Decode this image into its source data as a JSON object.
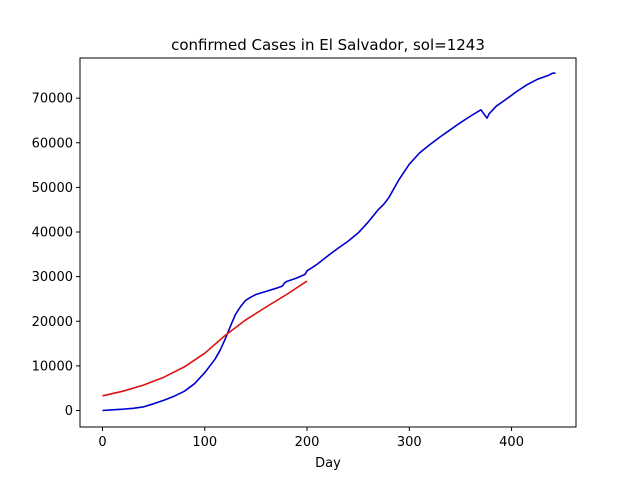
{
  "chart_data": {
    "type": "line",
    "title": "confirmed Cases in El Salvador, sol=1243",
    "xlabel": "Day",
    "ylabel": "",
    "xlim": [
      -22,
      463
    ],
    "ylim": [
      -3700,
      79000
    ],
    "xticks": [
      0,
      100,
      200,
      300,
      400
    ],
    "yticks": [
      0,
      10000,
      20000,
      30000,
      40000,
      50000,
      60000,
      70000
    ],
    "grid": false,
    "series": [
      {
        "color": "#0000cc",
        "x": [
          0,
          10,
          20,
          30,
          40,
          50,
          60,
          70,
          80,
          90,
          100,
          110,
          115,
          120,
          125,
          130,
          135,
          140,
          145,
          150,
          160,
          170,
          176,
          178,
          180,
          190,
          198,
          200,
          205,
          210,
          220,
          230,
          240,
          250,
          260,
          265,
          270,
          275,
          280,
          290,
          300,
          310,
          320,
          330,
          340,
          350,
          360,
          370,
          376,
          378,
          385,
          395,
          405,
          415,
          425,
          435,
          440,
          443
        ],
        "y": [
          0,
          150,
          300,
          500,
          800,
          1500,
          2300,
          3200,
          4300,
          6000,
          8500,
          11500,
          13500,
          16000,
          18800,
          21500,
          23300,
          24700,
          25400,
          26000,
          26700,
          27400,
          27900,
          28600,
          28900,
          29700,
          30500,
          31300,
          32000,
          32800,
          34600,
          36300,
          37900,
          39800,
          42300,
          43700,
          45100,
          46200,
          47700,
          51800,
          55200,
          57700,
          59600,
          61300,
          62900,
          64500,
          66000,
          67400,
          65500,
          66500,
          68200,
          69800,
          71500,
          73000,
          74200,
          75000,
          75600,
          75600
        ]
      },
      {
        "color": "#dd1111",
        "x": [
          0,
          20,
          40,
          60,
          80,
          100,
          120,
          140,
          160,
          180,
          200
        ],
        "y": [
          3300,
          4330,
          5680,
          7450,
          9780,
          12830,
          16840,
          20300,
          23200,
          26000,
          29000
        ]
      }
    ]
  }
}
